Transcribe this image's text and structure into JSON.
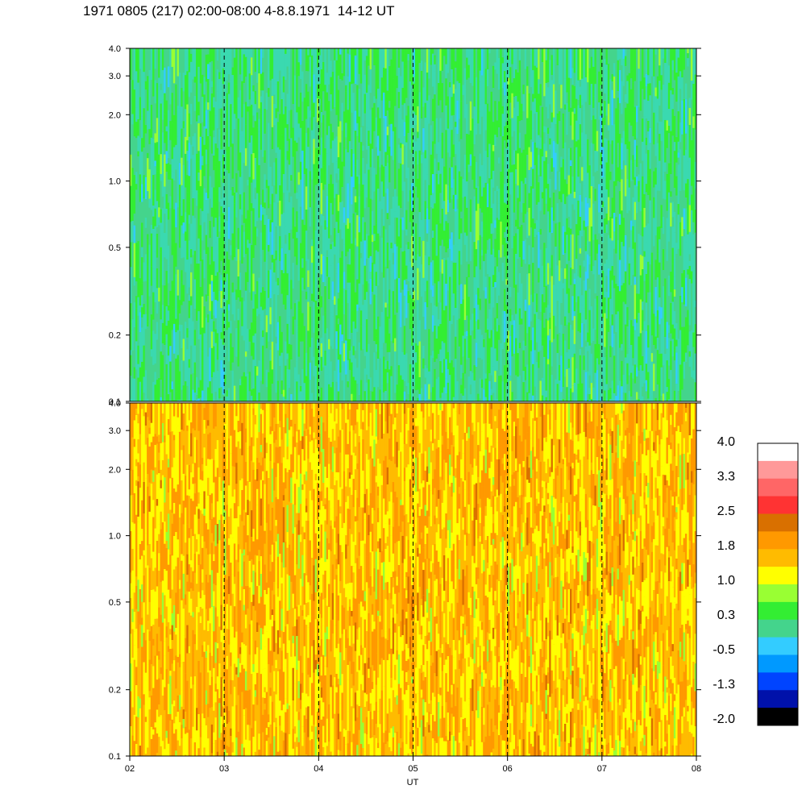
{
  "title": "1971 0805 (217) 02:00-08:00 4-8.8.1971  14-12 UT",
  "chart_data": {
    "type": "heatmap",
    "title": "1971 0805 (217) 02:00-08:00 4-8.8.1971  14-12 UT",
    "xlabel": "UT",
    "x_tick_labels": [
      "02",
      "03",
      "04",
      "05",
      "06",
      "07",
      "08"
    ],
    "x_range": [
      "02:00",
      "08:00"
    ],
    "y_scale": "log",
    "y_range": [
      0.1,
      4.0
    ],
    "y_tick_labels": [
      "0.1",
      "0.2",
      "0.5",
      "1.0",
      "2.0",
      "3.0",
      "4.0"
    ],
    "y_tick_values": [
      0.1,
      0.2,
      0.5,
      1.0,
      2.0,
      3.0,
      4.0
    ],
    "hour_grid_lines": "dashed",
    "panels": [
      {
        "name": "upper",
        "dominant_levels": [
          -0.5,
          0.3,
          1.0
        ],
        "notes_visible": false
      },
      {
        "name": "lower",
        "dominant_levels": [
          1.0,
          1.8,
          2.5
        ],
        "notes_visible": false
      }
    ],
    "colorbar": {
      "labels": [
        "4.0",
        "3.3",
        "2.5",
        "1.8",
        "1.0",
        "0.3",
        "-0.5",
        "-1.3",
        "-2.0"
      ],
      "colors_top_to_bottom": [
        "#ffffff",
        "#ff9999",
        "#ff6666",
        "#ff3333",
        "#d97000",
        "#ff9900",
        "#ffbb00",
        "#ffff00",
        "#99ff33",
        "#33ee33",
        "#44d48c",
        "#33ccff",
        "#0099ff",
        "#0044ff",
        "#0011aa",
        "#000000"
      ]
    }
  }
}
